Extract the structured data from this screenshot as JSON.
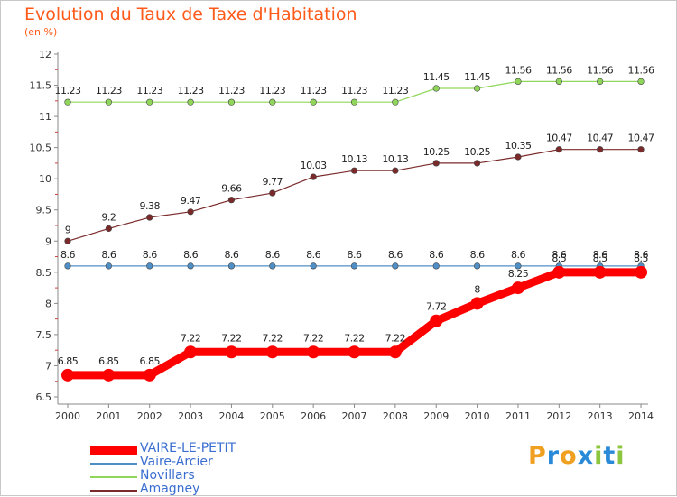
{
  "chart_data": {
    "type": "line",
    "title": "Evolution du Taux de Taxe d'Habitation",
    "subtitle": "(en %)",
    "x": [
      "2000",
      "2001",
      "2002",
      "2003",
      "2004",
      "2005",
      "2006",
      "2007",
      "2008",
      "2009",
      "2010",
      "2011",
      "2012",
      "2013",
      "2014"
    ],
    "ylim": [
      6.5,
      12
    ],
    "yticks": [
      "6.5",
      "7",
      "7.5",
      "8",
      "8.5",
      "9",
      "9.5",
      "10",
      "10.5",
      "11",
      "11.5",
      "12"
    ],
    "grid": false,
    "legend_placement": "bottom-left",
    "series": [
      {
        "name": "VAIRE-LE-PETIT",
        "color": "#ff0000",
        "values": [
          6.85,
          6.85,
          6.85,
          7.22,
          7.22,
          7.22,
          7.22,
          7.22,
          7.22,
          7.72,
          8,
          8.25,
          8.5,
          8.5,
          8.5
        ],
        "labels": [
          "6.85",
          "6.85",
          "6.85",
          "7.22",
          "7.22",
          "7.22",
          "7.22",
          "7.22",
          "7.22",
          "7.72",
          "8",
          "8.25",
          "8.5",
          "8.5",
          "8.5"
        ]
      },
      {
        "name": "Vaire-Arcier",
        "color": "#4f8fc7",
        "values": [
          8.6,
          8.6,
          8.6,
          8.6,
          8.6,
          8.6,
          8.6,
          8.6,
          8.6,
          8.6,
          8.6,
          8.6,
          8.6,
          8.6,
          8.6
        ],
        "labels": [
          "8.6",
          "8.6",
          "8.6",
          "8.6",
          "8.6",
          "8.6",
          "8.6",
          "8.6",
          "8.6",
          "8.6",
          "8.6",
          "8.6",
          "8.6",
          "8.6",
          "8.6"
        ]
      },
      {
        "name": "Novillars",
        "color": "#8fd65a",
        "values": [
          11.23,
          11.23,
          11.23,
          11.23,
          11.23,
          11.23,
          11.23,
          11.23,
          11.23,
          11.45,
          11.45,
          11.56,
          11.56,
          11.56,
          11.56
        ],
        "labels": [
          "11.23",
          "11.23",
          "11.23",
          "11.23",
          "11.23",
          "11.23",
          "11.23",
          "11.23",
          "11.23",
          "11.45",
          "11.45",
          "11.56",
          "11.56",
          "11.56",
          "11.56"
        ]
      },
      {
        "name": "Amagney",
        "color": "#7a2a2a",
        "values": [
          9,
          9.2,
          9.38,
          9.47,
          9.66,
          9.77,
          10.03,
          10.13,
          10.13,
          10.25,
          10.25,
          10.35,
          10.47,
          10.47,
          10.47
        ],
        "labels": [
          "9",
          "9.2",
          "9.38",
          "9.47",
          "9.66",
          "9.77",
          "10.03",
          "10.13",
          "10.13",
          "10.25",
          "10.25",
          "10.35",
          "10.47",
          "10.47",
          "10.47"
        ]
      }
    ]
  },
  "logo": {
    "letters": [
      "P",
      "r",
      "o",
      "x",
      "i",
      "t",
      "i"
    ],
    "colors": [
      "#f0a020",
      "#2a8ad8",
      "#f0a020",
      "#2a8ad8",
      "#8cc63f",
      "#2a8ad8",
      "#8cc63f"
    ]
  }
}
